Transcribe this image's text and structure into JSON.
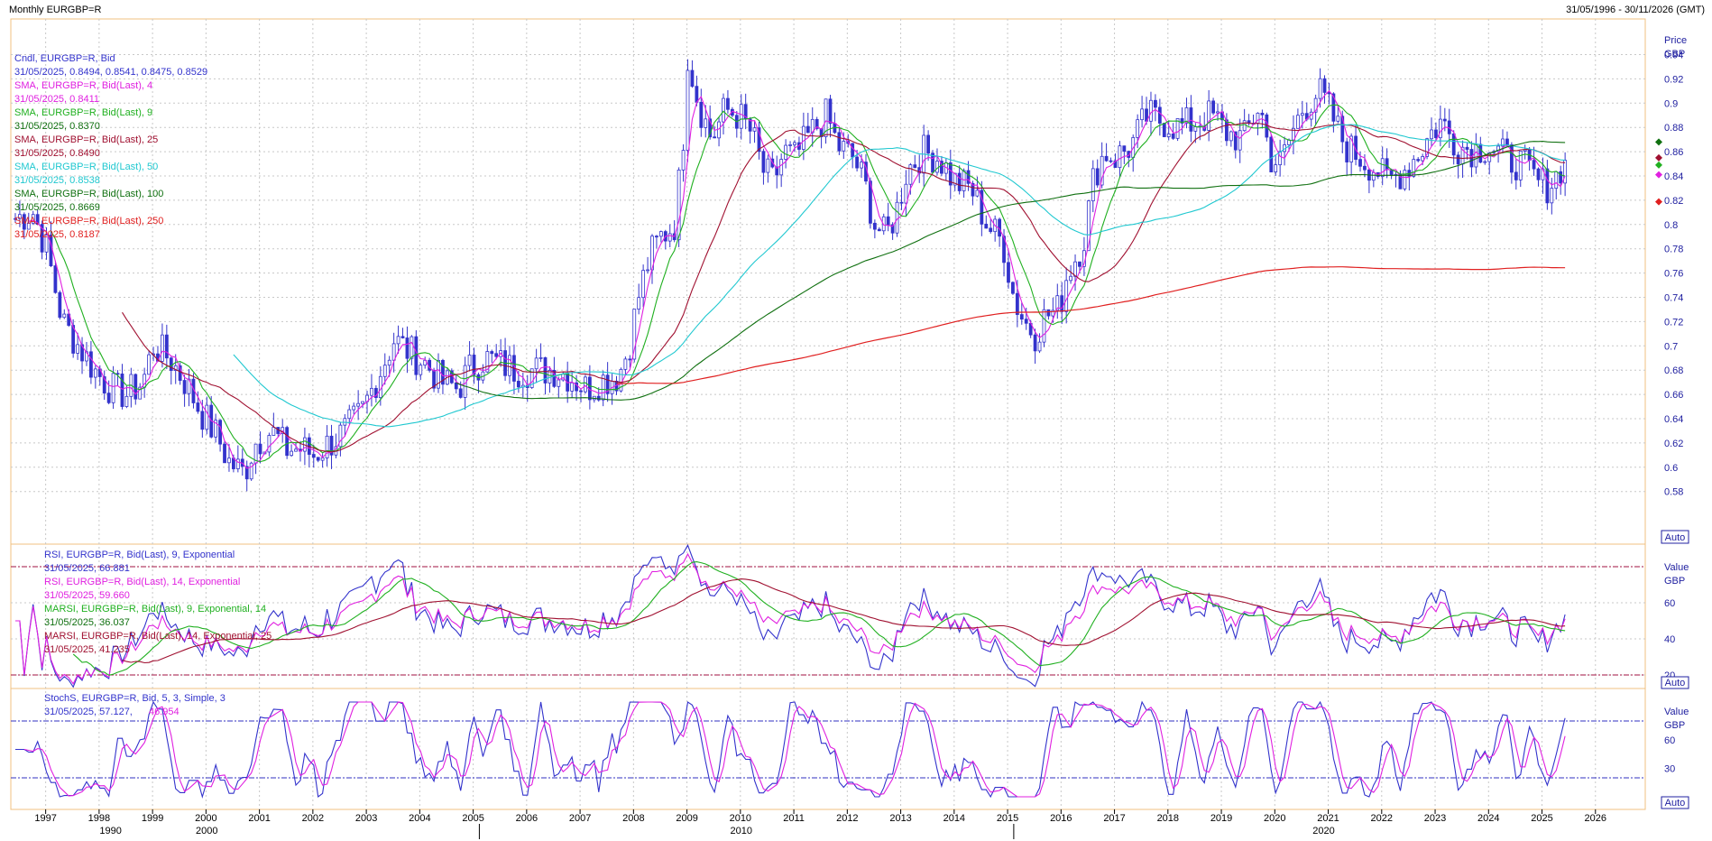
{
  "window": {
    "title": "Monthly EURGBP=R",
    "date_range": "31/05/1996 - 30/11/2026 (GMT)"
  },
  "colors": {
    "candle": "#3333cc",
    "sma4": "#e020e0",
    "sma9": "#20b020",
    "sma25": "#a01030",
    "sma50": "#20c8d0",
    "sma100": "#107010",
    "sma250": "#e02020",
    "panel_border": "#f0c080",
    "grid": "#c8c8c8"
  },
  "legend": {
    "price": [
      {
        "label": "Cndl, EURGBP=R, Bid",
        "value": "31/05/2025, 0.8494, 0.8541, 0.8475, 0.8529",
        "color": "#3333cc"
      },
      {
        "label": "SMA, EURGBP=R, Bid(Last), 4",
        "value": "31/05/2025, 0.8411",
        "color": "#e020e0"
      },
      {
        "label": "SMA, EURGBP=R, Bid(Last), 9",
        "value": "31/05/2025, 0.8370",
        "color": "#20b020"
      },
      {
        "label": "SMA, EURGBP=R, Bid(Last), 25",
        "value": "31/05/2025, 0.8490",
        "color": "#a01030"
      },
      {
        "label": "SMA, EURGBP=R, Bid(Last), 50",
        "value": "31/05/2025, 0.8538",
        "color": "#20c8d0"
      },
      {
        "label": "SMA, EURGBP=R, Bid(Last), 100",
        "value": "31/05/2025, 0.8669",
        "color": "#107010"
      },
      {
        "label": "SMA, EURGBP=R, Bid(Last), 250",
        "value": "31/05/2025, 0.8187",
        "color": "#e02020"
      }
    ],
    "rsi": [
      {
        "label": "RSI, EURGBP=R, Bid(Last), 9, Exponential",
        "value": "31/05/2025, 66.881",
        "color": "#3333cc"
      },
      {
        "label": "RSI, EURGBP=R, Bid(Last), 14, Exponential",
        "value": "31/05/2025, 59.660",
        "color": "#e020e0"
      },
      {
        "label": "MARSI, EURGBP=R, Bid(Last), 9, Exponential, 14",
        "value": "31/05/2025, 36.037",
        "color": "#20b020"
      },
      {
        "label": "MARSI, EURGBP=R, Bid(Last), 14, Exponential, 25",
        "value": "31/05/2025, 41.235",
        "color": "#a01030"
      }
    ],
    "stoch": [
      {
        "label": "StochS, EURGBP=R, Bid, 5, 3, Simple, 3",
        "value_a": "31/05/2025, 57.127,",
        "value_b": "46.954",
        "color": "#3333cc",
        "color_b": "#e020e0"
      }
    ]
  },
  "axis": {
    "price_title": "Price",
    "price_unit": "GBP",
    "price_ticks": [
      "0.94",
      "0.92",
      "0.9",
      "0.88",
      "0.86",
      "0.84",
      "0.82",
      "0.8",
      "0.78",
      "0.76",
      "0.74",
      "0.72",
      "0.7",
      "0.68",
      "0.66",
      "0.64",
      "0.62",
      "0.6",
      "0.58"
    ],
    "value_title": "Value",
    "value_unit": "GBP",
    "rsi_ticks": [
      "60",
      "40",
      "20"
    ],
    "stoch_ticks": [
      "60",
      "30"
    ],
    "auto_label": "Auto",
    "years": [
      "1997",
      "1998",
      "1999",
      "2000",
      "2001",
      "2002",
      "2003",
      "2004",
      "2005",
      "2006",
      "2007",
      "2008",
      "2009",
      "2010",
      "2011",
      "2012",
      "2013",
      "2014",
      "2015",
      "2016",
      "2017",
      "2018",
      "2019",
      "2020",
      "2021",
      "2022",
      "2023",
      "2024",
      "2025",
      "2026"
    ],
    "decades": [
      "1990",
      "2000",
      "2010",
      "2020"
    ]
  },
  "chart_data": {
    "type": "line",
    "title": "Monthly EURGBP=R",
    "instrument": "EURGBP=R",
    "x_range": [
      "1996-05",
      "2026-11"
    ],
    "ylim": [
      0.565,
      0.98
    ],
    "last_candle": {
      "date": "31/05/2025",
      "open": 0.8494,
      "high": 0.8541,
      "low": 0.8475,
      "close": 0.8529
    },
    "anchors": [
      [
        1996.4,
        0.805
      ],
      [
        1996.75,
        0.81
      ],
      [
        1997.0,
        0.78
      ],
      [
        1997.3,
        0.72
      ],
      [
        1997.6,
        0.7
      ],
      [
        1997.9,
        0.68
      ],
      [
        1998.2,
        0.665
      ],
      [
        1998.5,
        0.66
      ],
      [
        1998.8,
        0.67
      ],
      [
        1999.0,
        0.7
      ],
      [
        1999.3,
        0.69
      ],
      [
        1999.6,
        0.67
      ],
      [
        1999.9,
        0.645
      ],
      [
        2000.2,
        0.625
      ],
      [
        2000.4,
        0.605
      ],
      [
        2000.7,
        0.595
      ],
      [
        2000.9,
        0.62
      ],
      [
        2001.2,
        0.63
      ],
      [
        2001.5,
        0.615
      ],
      [
        2001.8,
        0.615
      ],
      [
        2002.0,
        0.61
      ],
      [
        2002.3,
        0.62
      ],
      [
        2002.6,
        0.63
      ],
      [
        2002.9,
        0.645
      ],
      [
        2003.2,
        0.675
      ],
      [
        2003.5,
        0.705
      ],
      [
        2003.8,
        0.695
      ],
      [
        2004.1,
        0.685
      ],
      [
        2004.4,
        0.67
      ],
      [
        2004.7,
        0.665
      ],
      [
        2004.9,
        0.68
      ],
      [
        2005.2,
        0.69
      ],
      [
        2005.5,
        0.685
      ],
      [
        2005.8,
        0.68
      ],
      [
        2006.2,
        0.68
      ],
      [
        2006.5,
        0.68
      ],
      [
        2006.8,
        0.675
      ],
      [
        2007.1,
        0.665
      ],
      [
        2007.4,
        0.672
      ],
      [
        2007.7,
        0.675
      ],
      [
        2007.9,
        0.7
      ],
      [
        2008.1,
        0.745
      ],
      [
        2008.3,
        0.775
      ],
      [
        2008.5,
        0.79
      ],
      [
        2008.75,
        0.8
      ],
      [
        2008.9,
        0.86
      ],
      [
        2009.0,
        0.94
      ],
      [
        2009.2,
        0.9
      ],
      [
        2009.45,
        0.87
      ],
      [
        2009.7,
        0.895
      ],
      [
        2009.95,
        0.89
      ],
      [
        2010.2,
        0.875
      ],
      [
        2010.4,
        0.845
      ],
      [
        2010.6,
        0.835
      ],
      [
        2010.8,
        0.86
      ],
      [
        2011.0,
        0.855
      ],
      [
        2011.3,
        0.875
      ],
      [
        2011.6,
        0.89
      ],
      [
        2011.8,
        0.865
      ],
      [
        2012.1,
        0.855
      ],
      [
        2012.3,
        0.835
      ],
      [
        2012.5,
        0.8
      ],
      [
        2012.7,
        0.79
      ],
      [
        2012.9,
        0.81
      ],
      [
        2013.1,
        0.845
      ],
      [
        2013.4,
        0.86
      ],
      [
        2013.7,
        0.855
      ],
      [
        2014.0,
        0.835
      ],
      [
        2014.3,
        0.83
      ],
      [
        2014.6,
        0.8
      ],
      [
        2014.9,
        0.785
      ],
      [
        2015.1,
        0.74
      ],
      [
        2015.3,
        0.72
      ],
      [
        2015.5,
        0.71
      ],
      [
        2015.7,
        0.725
      ],
      [
        2015.95,
        0.73
      ],
      [
        2016.1,
        0.76
      ],
      [
        2016.4,
        0.785
      ],
      [
        2016.6,
        0.84
      ],
      [
        2016.8,
        0.86
      ],
      [
        2017.0,
        0.855
      ],
      [
        2017.3,
        0.865
      ],
      [
        2017.6,
        0.89
      ],
      [
        2017.9,
        0.885
      ],
      [
        2018.2,
        0.88
      ],
      [
        2018.5,
        0.885
      ],
      [
        2018.8,
        0.89
      ],
      [
        2019.1,
        0.875
      ],
      [
        2019.4,
        0.87
      ],
      [
        2019.7,
        0.9
      ],
      [
        2019.9,
        0.855
      ],
      [
        2020.1,
        0.85
      ],
      [
        2020.3,
        0.875
      ],
      [
        2020.5,
        0.895
      ],
      [
        2020.8,
        0.91
      ],
      [
        2021.0,
        0.895
      ],
      [
        2021.3,
        0.865
      ],
      [
        2021.6,
        0.855
      ],
      [
        2021.9,
        0.845
      ],
      [
        2022.1,
        0.835
      ],
      [
        2022.4,
        0.845
      ],
      [
        2022.7,
        0.86
      ],
      [
        2022.9,
        0.875
      ],
      [
        2023.1,
        0.885
      ],
      [
        2023.4,
        0.865
      ],
      [
        2023.7,
        0.862
      ],
      [
        2024.0,
        0.865
      ],
      [
        2024.3,
        0.855
      ],
      [
        2024.6,
        0.85
      ],
      [
        2024.9,
        0.835
      ],
      [
        2025.1,
        0.832
      ],
      [
        2025.25,
        0.84
      ],
      [
        2025.4,
        0.853
      ]
    ]
  }
}
